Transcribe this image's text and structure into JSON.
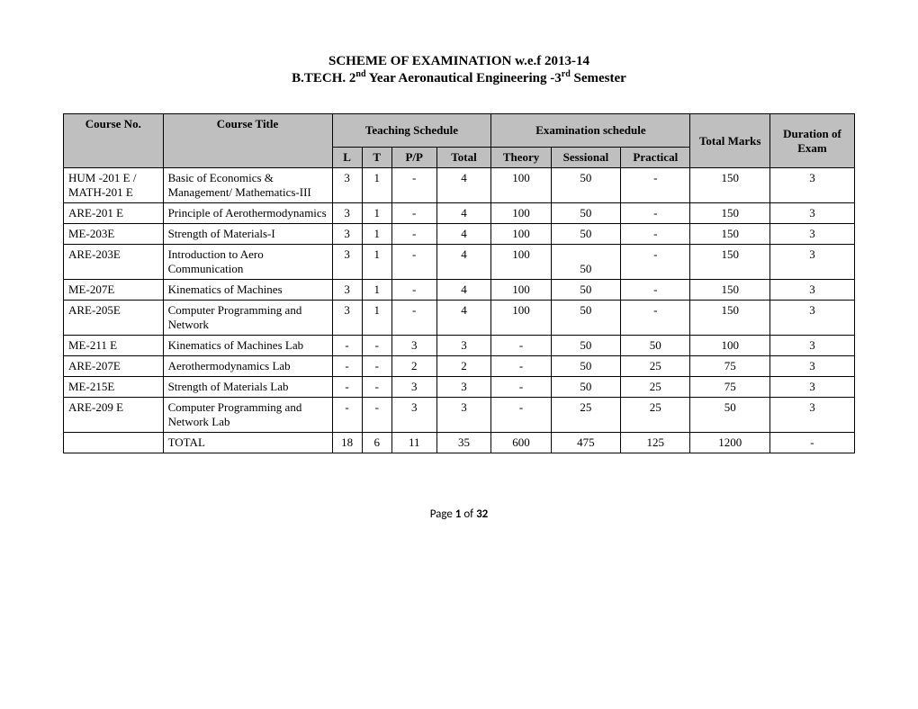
{
  "heading": "SCHEME OF   EXAMINATION  w.e.f 2013-14",
  "subheading_prefix": "B.TECH. 2",
  "subheading_sup1": "nd",
  "subheading_mid": " Year Aeronautical Engineering -3",
  "subheading_sup2": "rd",
  "subheading_suffix": " Semester",
  "table": {
    "header_bg": "#bfbfbf",
    "columns": {
      "course_no": "Course No.",
      "course_title": "Course Title",
      "teaching_schedule": "Teaching Schedule",
      "examination_schedule": "Examination schedule",
      "total_marks": "Total Marks",
      "duration": "Duration of Exam",
      "L": "L",
      "T": "T",
      "PP": "P/P",
      "Total": "Total",
      "Theory": "Theory",
      "Sessional": "Sessional",
      "Practical": "Practical"
    },
    "rows": [
      {
        "no": "HUM -201 E / MATH-201 E",
        "title": "Basic of Economics & Management/ Mathematics-III",
        "L": "3",
        "T": "1",
        "PP": "-",
        "tot": "4",
        "th": "100",
        "se": "50",
        "pr": "-",
        "tm": "150",
        "dur": "3"
      },
      {
        "no": "ARE-201 E",
        "title": "Principle of Aerothermodynamics",
        "L": "3",
        "T": "1",
        "PP": "-",
        "tot": "4",
        "th": "100",
        "se": "50",
        "pr": "-",
        "tm": "150",
        "dur": "3"
      },
      {
        "no": "ME-203E",
        "title": "Strength of Materials-I",
        "L": "3",
        "T": "1",
        "PP": "-",
        "tot": "4",
        "th": "100",
        "se": "50",
        "pr": "-",
        "tm": "150",
        "dur": "3"
      },
      {
        "no": "ARE-203E",
        "title": " Introduction to Aero Communication",
        "L": "3",
        "T": "1",
        "PP": "-",
        "tot": "4",
        "th": "100",
        "se": "50",
        "pr": "-",
        "tm": "150",
        "dur": "3",
        "se_break": true
      },
      {
        "no": "ME-207E",
        "title": "Kinematics of Machines",
        "L": "3",
        "T": "1",
        "PP": "-",
        "tot": "4",
        "th": "100",
        "se": "50",
        "pr": "-",
        "tm": "150",
        "dur": "3"
      },
      {
        "no": "ARE-205E",
        "title": "Computer Programming and Network",
        "L": "3",
        "T": "1",
        "PP": "-",
        "tot": "4",
        "th": "100",
        "se": "50",
        "pr": "-",
        "tm": "150",
        "dur": "3"
      },
      {
        "no": "ME-211 E",
        "title": "Kinematics of Machines Lab",
        "L": "-",
        "T": "-",
        "PP": "3",
        "tot": "3",
        "th": "-",
        "se": "50",
        "pr": "50",
        "tm": "100",
        "dur": "3"
      },
      {
        "no": "ARE-207E",
        "title": "Aerothermodynamics Lab",
        "L": "-",
        "T": "-",
        "PP": "2",
        "tot": "2",
        "th": "-",
        "se": "50",
        "pr": "25",
        "tm": "75",
        "dur": "3"
      },
      {
        "no": "ME-215E",
        "title": "Strength of Materials Lab",
        "L": "-",
        "T": "-",
        "PP": "3",
        "tot": "3",
        "th": "-",
        "se": "50",
        "pr": "25",
        "tm": "75",
        "dur": "3"
      },
      {
        "no": "ARE-209 E",
        "title": "Computer Programming and Network Lab",
        "L": "-",
        "T": "-",
        "PP": "3",
        "tot": "3",
        "th": "-",
        "se": "25",
        "pr": "25",
        "tm": "50",
        "dur": "3"
      },
      {
        "no": "",
        "title": "TOTAL",
        "L": "18",
        "T": "6",
        "PP": "11",
        "tot": "35",
        "th": "600",
        "se": "475",
        "pr": "125",
        "tm": "1200",
        "dur": "-"
      }
    ]
  },
  "footer": {
    "prefix": "Page ",
    "current": "1",
    "mid": " of ",
    "total": "32"
  },
  "colors": {
    "text": "#000000",
    "bg": "#ffffff",
    "border": "#000000"
  }
}
